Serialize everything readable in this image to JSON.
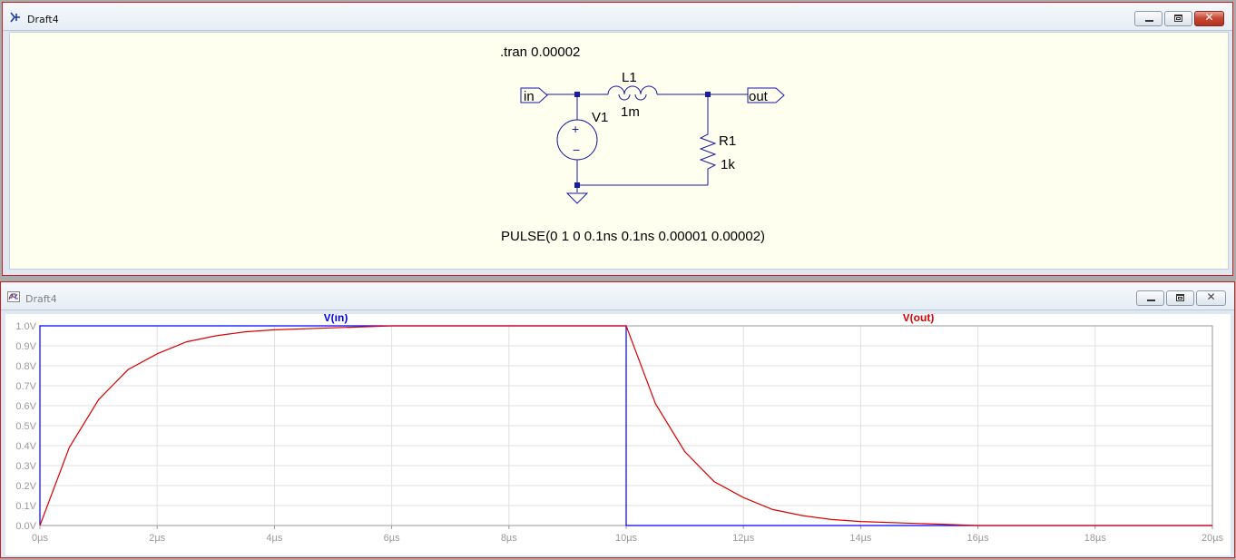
{
  "schematic_window": {
    "title": "Draft4",
    "icon": "schematic-icon",
    "directive": ".tran 0.00002",
    "source_value": "PULSE(0 1 0 0.1ns 0.1ns 0.00001 0.00002)",
    "components": {
      "inductor": {
        "name": "L1",
        "value": "1m"
      },
      "voltage_source": {
        "name": "V1"
      },
      "resistor": {
        "name": "R1",
        "value": "1k"
      }
    },
    "labels": {
      "input": "in",
      "output": "out"
    }
  },
  "waveform_window": {
    "title": "Draft4",
    "icon": "waveform-icon",
    "traces": [
      {
        "label": "V(in)",
        "color": "#0000ff"
      },
      {
        "label": "V(out)",
        "color": "#dd0000"
      }
    ]
  },
  "window_controls": {
    "minimize": "minimize-icon",
    "maximize": "maximize-icon",
    "close": "close-icon"
  },
  "chart_data": {
    "type": "line",
    "x_unit": "µs",
    "x_ticks": [
      "0µs",
      "2µs",
      "4µs",
      "6µs",
      "8µs",
      "10µs",
      "12µs",
      "14µs",
      "16µs",
      "18µs",
      "20µs"
    ],
    "y_ticks": [
      "0.0V",
      "0.1V",
      "0.2V",
      "0.3V",
      "0.4V",
      "0.5V",
      "0.6V",
      "0.7V",
      "0.8V",
      "0.9V",
      "1.0V"
    ],
    "xlim": [
      0,
      20
    ],
    "ylim": [
      0,
      1
    ],
    "grid": true,
    "series": [
      {
        "name": "V(in)",
        "color": "#0000ff",
        "x": [
          0,
          0,
          10,
          10,
          20
        ],
        "y": [
          0,
          1,
          1,
          0,
          0
        ]
      },
      {
        "name": "V(out)",
        "color": "#dd0000",
        "x": [
          0,
          0.5,
          1,
          1.5,
          2,
          2.5,
          3,
          3.5,
          4,
          5,
          6,
          7,
          8,
          10,
          10.5,
          11,
          11.5,
          12,
          12.5,
          13,
          13.5,
          14,
          15,
          16,
          17,
          18,
          20
        ],
        "y": [
          0,
          0.39,
          0.63,
          0.78,
          0.86,
          0.92,
          0.95,
          0.97,
          0.98,
          0.99,
          1.0,
          1.0,
          1.0,
          1.0,
          0.61,
          0.37,
          0.22,
          0.14,
          0.08,
          0.05,
          0.03,
          0.02,
          0.01,
          0.0,
          0.0,
          0.0,
          0.0
        ]
      }
    ]
  }
}
